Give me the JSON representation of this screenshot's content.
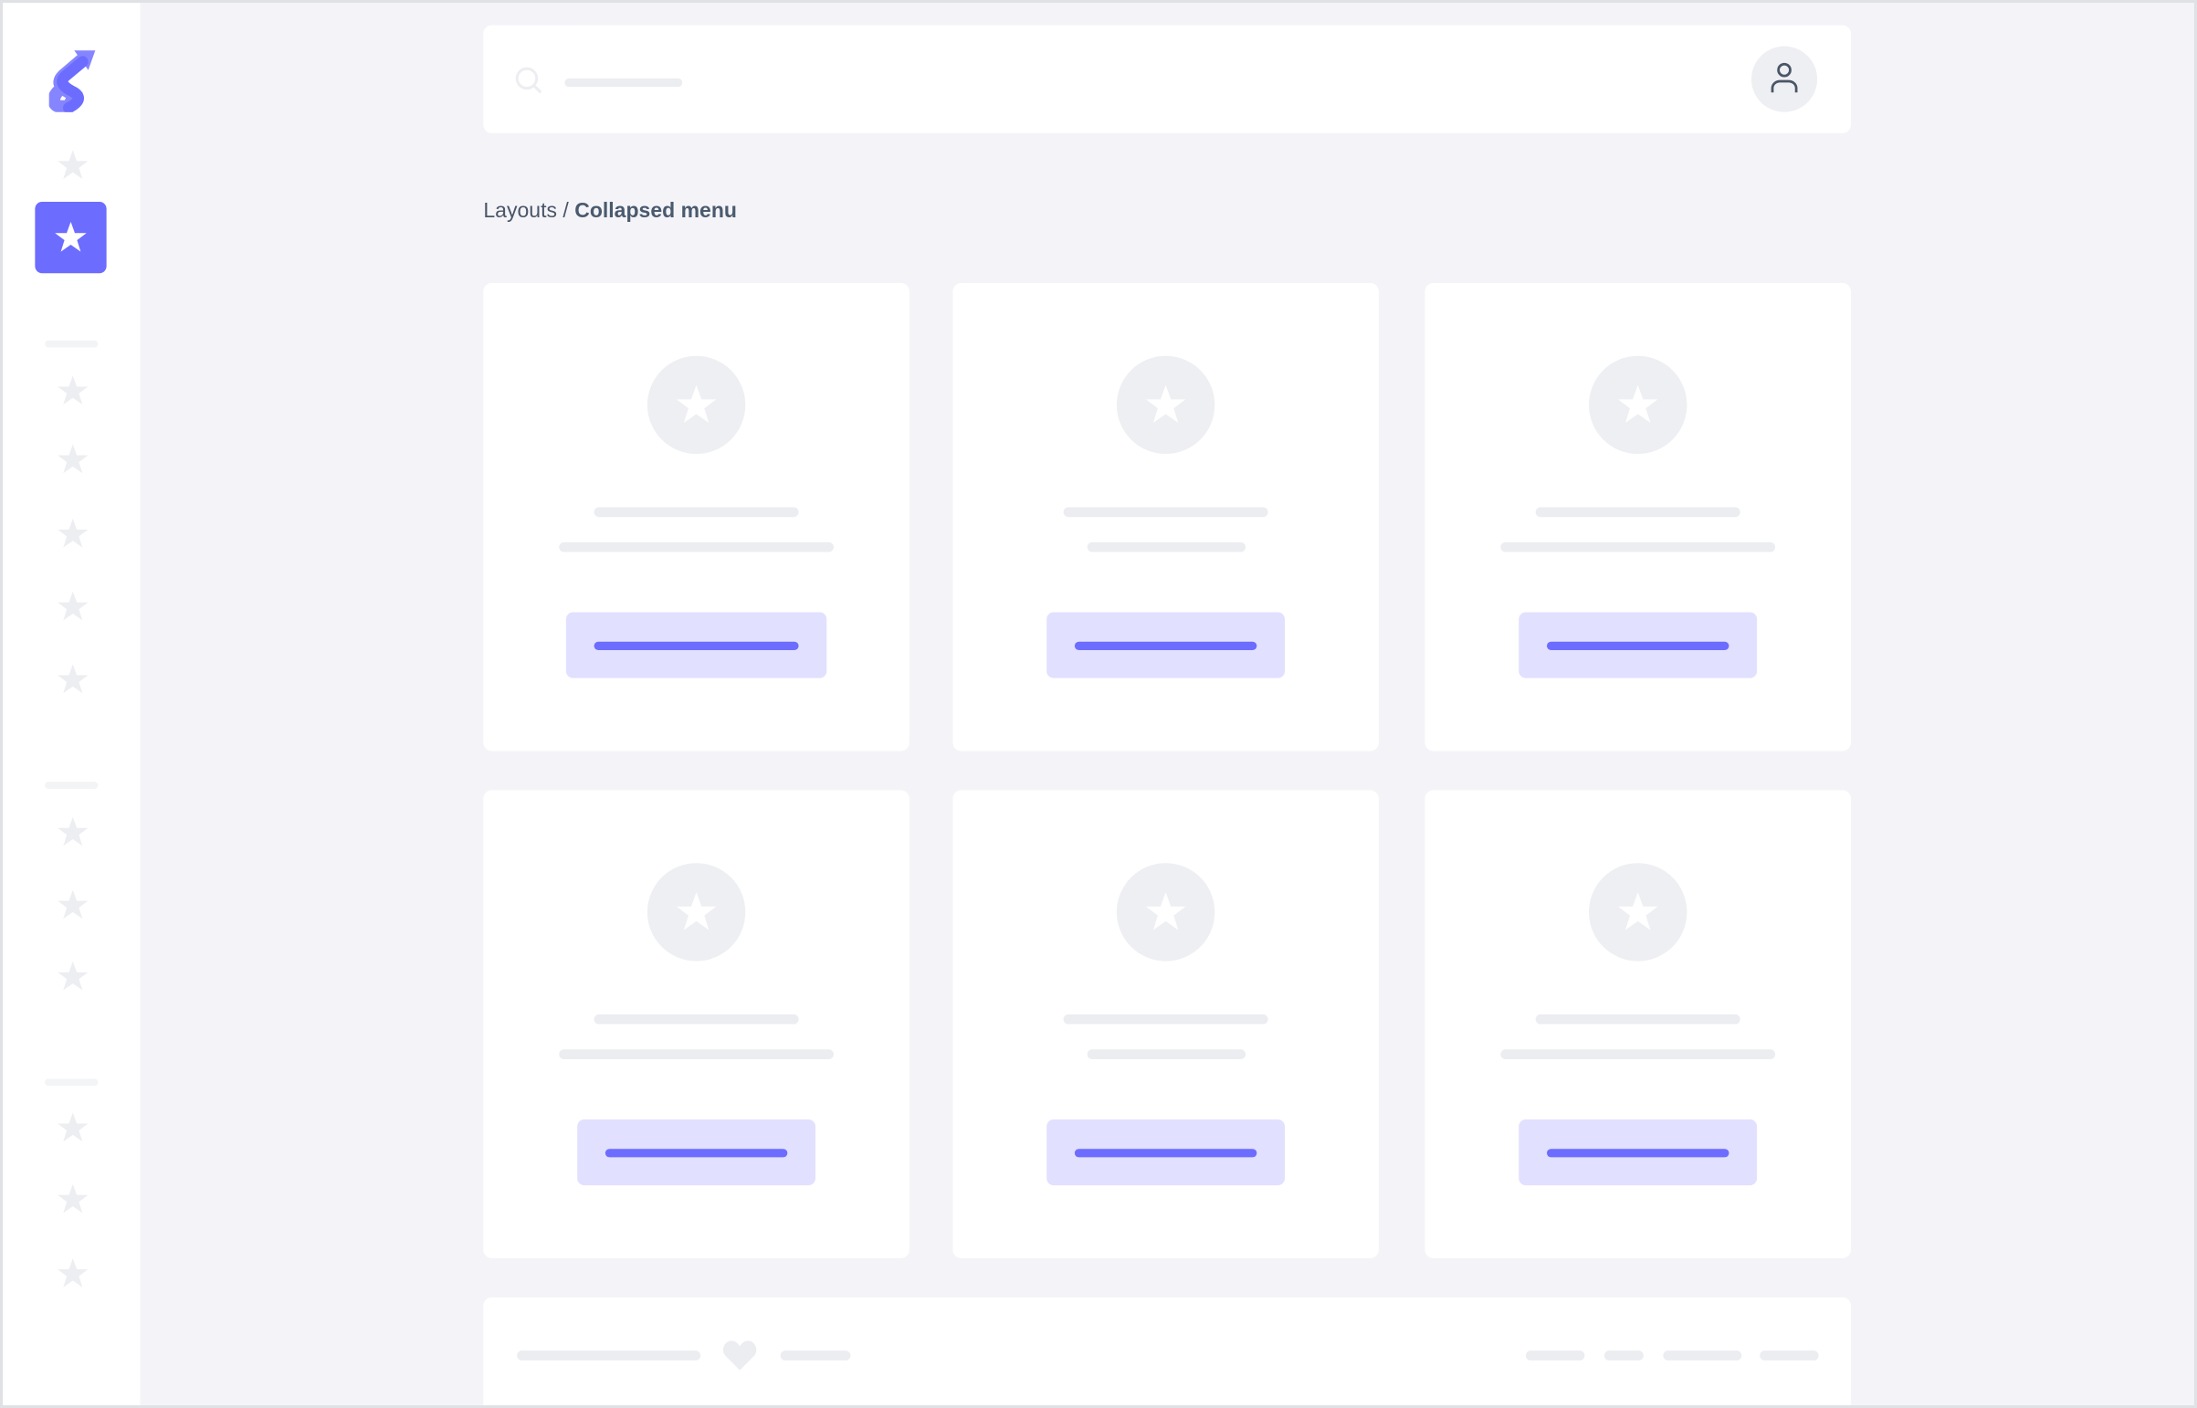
{
  "app": {
    "logo": "brand-s-logo",
    "accent_color": "#6c6cff",
    "accent_light": "#e1e0ff"
  },
  "header": {
    "search_icon": "search-icon",
    "avatar_icon": "user-icon"
  },
  "breadcrumb": {
    "parent": "Layouts",
    "separator": " / ",
    "current": "Collapsed menu"
  },
  "sidebar": {
    "item_icon": "star-icon",
    "active_index": 1,
    "groups": [
      2,
      5,
      3,
      3
    ]
  },
  "cards": {
    "count": 6
  },
  "footer": {
    "icon": "heart-icon"
  }
}
